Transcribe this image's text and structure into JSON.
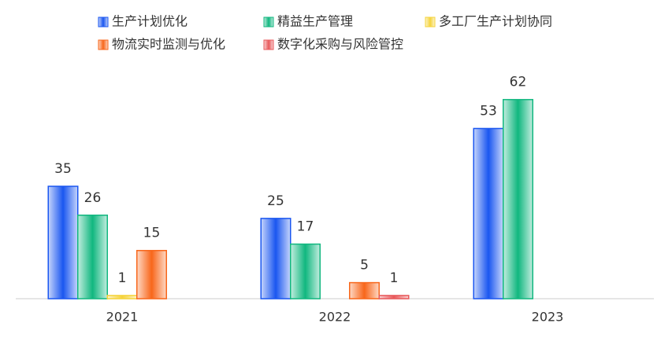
{
  "chart_data": {
    "type": "bar",
    "categories": [
      "2021",
      "2022",
      "2023"
    ],
    "series": [
      {
        "name": "生产计划优化",
        "color": "#1a56f0",
        "values": [
          35,
          25,
          53
        ]
      },
      {
        "name": "精益生产管理",
        "color": "#10b77f",
        "values": [
          26,
          17,
          62
        ]
      },
      {
        "name": "多工厂生产计划协同",
        "color": "#f5d33a",
        "values": [
          1,
          null,
          null
        ]
      },
      {
        "name": "物流实时监测与优化",
        "color": "#f8661a",
        "values": [
          15,
          5,
          null
        ]
      },
      {
        "name": "数字化采购与风险管控",
        "color": "#e8595b",
        "values": [
          null,
          1,
          null
        ]
      }
    ],
    "ylim": [
      0,
      70
    ],
    "legend": "top"
  }
}
